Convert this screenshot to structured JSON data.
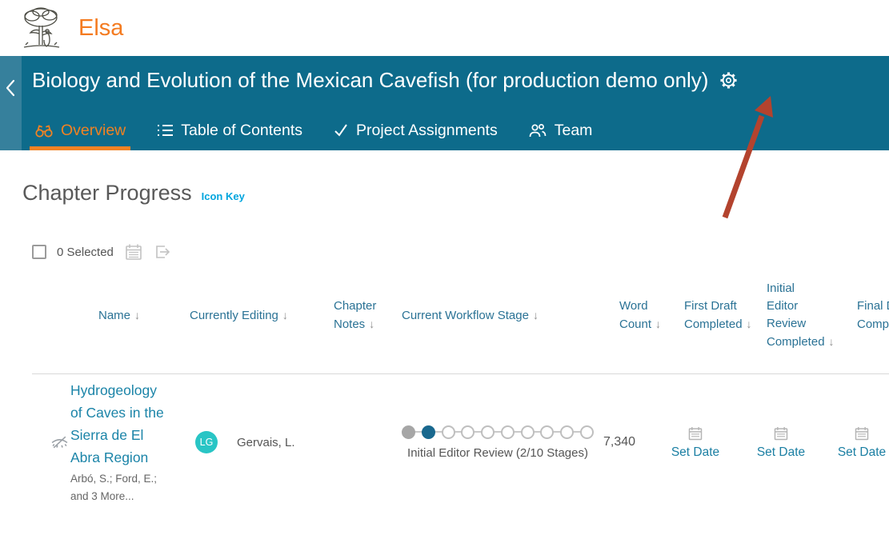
{
  "topbar": {
    "app_name": "Elsa"
  },
  "banner": {
    "title": "Biology and Evolution of the Mexican Cavefish (for production demo only)",
    "tabs": [
      {
        "label": "Overview",
        "active": true
      },
      {
        "label": "Table of Contents",
        "active": false
      },
      {
        "label": "Project Assignments",
        "active": false
      },
      {
        "label": "Team",
        "active": false
      }
    ]
  },
  "content": {
    "heading": "Chapter Progress",
    "icon_key": "Icon Key",
    "toolbar": {
      "selected_label": "0 Selected"
    },
    "table": {
      "columns": [
        {
          "label": "Name"
        },
        {
          "label": "Currently Editing"
        },
        {
          "label": "Chapter Notes"
        },
        {
          "label": "Current Workflow Stage"
        },
        {
          "label": "Word Count"
        },
        {
          "label": "First Draft Completed"
        },
        {
          "label": "Initial Editor Review Completed"
        },
        {
          "label": "Final Draft Completed"
        }
      ],
      "rows": [
        {
          "title": "Hydrogeology of Caves in the Sierra de El Abra Region",
          "authors": "Arbó, S.; Ford, E.; and 3 More...",
          "editor_avatar_initials": "LG",
          "editor_name": "Gervais, L.",
          "workflow": {
            "stages_total": 10,
            "stages_completed": 2,
            "label": "Initial Editor Review (2/10 Stages)"
          },
          "word_count": "7,340",
          "first_draft_completed": "Set Date",
          "initial_editor_review_completed": "Set Date",
          "final_draft_completed": "Set Date"
        }
      ]
    }
  },
  "icons": {
    "logo": "elsevier-tree",
    "back": "chevron-left",
    "settings": "gear",
    "tab_overview": "binoculars",
    "tab_toc": "list",
    "tab_assignments": "checkmark",
    "tab_team": "people",
    "bulk_set_date": "calendar",
    "export": "export-arrow",
    "row_hidden": "eye-slash",
    "sort": "arrow-down",
    "set_date": "calendar"
  },
  "colors": {
    "banner_teal": "#0d6b8b",
    "banner_back_strip": "#36809c",
    "accent_orange": "#f08223",
    "brand_orange": "#f47b20",
    "link_teal": "#1b84a8",
    "header_teal": "#2a7295",
    "icon_key_blue": "#00a5de",
    "avatar_teal": "#29c5c5",
    "stage_current": "#19688e",
    "stage_past": "#a6a6a6",
    "annotation_arrow": "#b3432e"
  }
}
